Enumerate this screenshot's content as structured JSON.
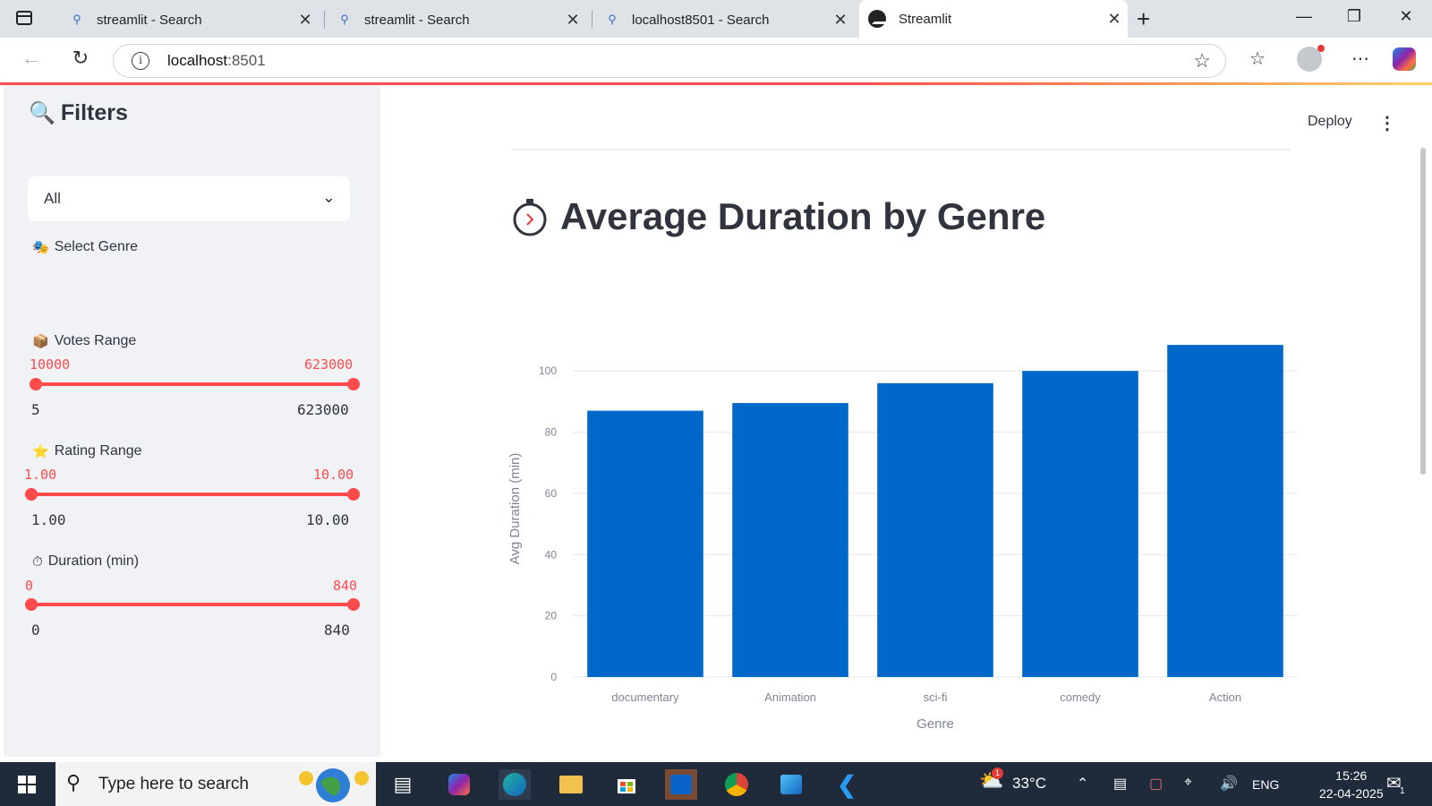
{
  "browser": {
    "tabs": [
      {
        "label": "streamlit - Search",
        "icon": "search-icon"
      },
      {
        "label": "streamlit - Search",
        "icon": "search-icon"
      },
      {
        "label": "localhost8501 - Search",
        "icon": "search-icon"
      },
      {
        "label": "Streamlit",
        "icon": "streamlit-logo",
        "active": true
      }
    ],
    "url_host": "localhost",
    "url_port": ":8501"
  },
  "app": {
    "deploy_label": "Deploy",
    "sidebar": {
      "title": "Filters",
      "genre_label": "Select Genre",
      "genre_value": "All",
      "votes": {
        "label": "Votes Range",
        "low": "10000",
        "high": "623000",
        "min": "5",
        "max": "623000"
      },
      "rating": {
        "label": "Rating Range",
        "low": "1.00",
        "high": "10.00",
        "min": "1.00",
        "max": "10.00"
      },
      "duration": {
        "label": "Duration (min)",
        "low": "0",
        "high": "840",
        "min": "0",
        "max": "840"
      }
    },
    "page_title": "Average Duration by Genre"
  },
  "chart_data": {
    "type": "bar",
    "categories": [
      "documentary",
      "Animation",
      "sci-fi",
      "comedy",
      "Action"
    ],
    "values": [
      87,
      89.5,
      96,
      100,
      108.5
    ],
    "xlabel": "Genre",
    "ylabel": "Avg Duration (min)",
    "ylim": [
      0,
      110
    ],
    "yticks": [
      0,
      20,
      40,
      60,
      80,
      100
    ],
    "color": "#0068c9",
    "grid": true
  },
  "taskbar": {
    "search_placeholder": "Type here to search",
    "weather": "33°C",
    "weather_badge": "1",
    "lang": "ENG",
    "time": "15:26",
    "date": "22-04-2025",
    "notif_count": "1"
  }
}
